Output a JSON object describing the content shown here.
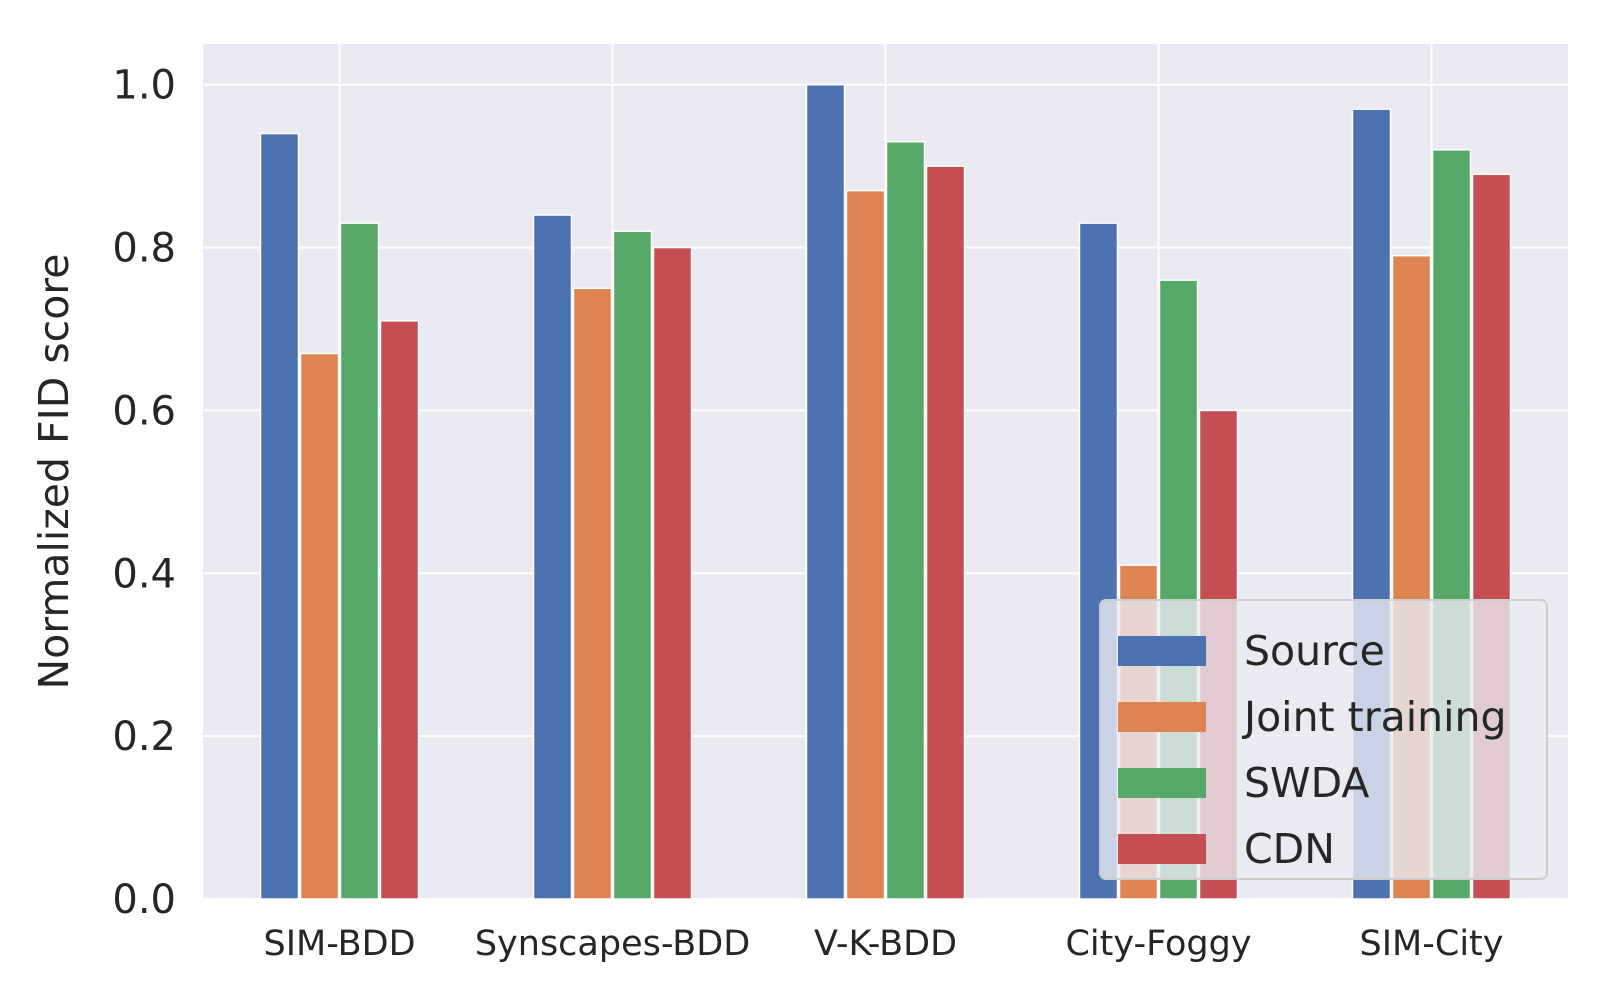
{
  "chart_data": {
    "type": "bar",
    "title": "",
    "xlabel": "",
    "ylabel": "Normalized FID score",
    "ylim": [
      0,
      1.05
    ],
    "yticks": [
      0.0,
      0.2,
      0.4,
      0.6,
      0.8,
      1.0
    ],
    "ytick_labels": [
      "0.0",
      "0.2",
      "0.4",
      "0.6",
      "0.8",
      "1.0"
    ],
    "grid": true,
    "legend_position": "lower-right",
    "categories": [
      "SIM-BDD",
      "Synscapes-BDD",
      "V-K-BDD",
      "City-Foggy",
      "SIM-City"
    ],
    "series": [
      {
        "name": "Source",
        "color": "#4c72b0",
        "values": [
          0.94,
          0.84,
          1.0,
          0.83,
          0.97
        ]
      },
      {
        "name": "Joint training",
        "color": "#dd8452",
        "values": [
          0.67,
          0.75,
          0.87,
          0.41,
          0.79
        ]
      },
      {
        "name": "SWDA",
        "color": "#55a868",
        "values": [
          0.83,
          0.82,
          0.93,
          0.76,
          0.92
        ]
      },
      {
        "name": "CDN",
        "color": "#c44e52",
        "values": [
          0.71,
          0.8,
          0.9,
          0.6,
          0.89
        ]
      }
    ],
    "plot_background": "#eaeaf2",
    "grid_color": "#ffffff"
  }
}
